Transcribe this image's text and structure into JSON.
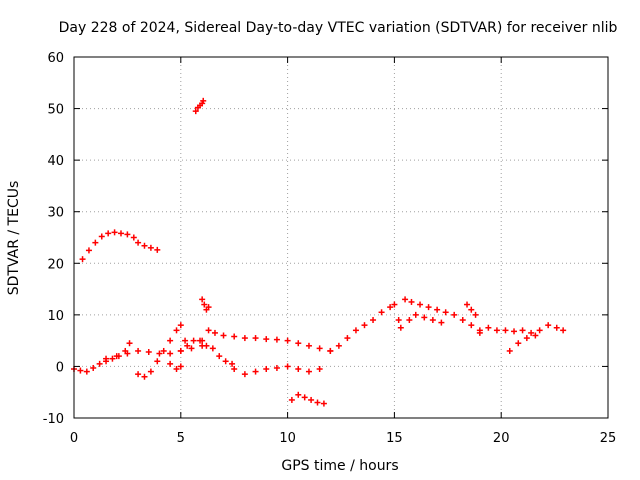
{
  "chart_data": {
    "type": "scatter",
    "title": "Day 228 of 2024, Sidereal Day-to-day VTEC variation (SDTVAR) for receiver nlib",
    "xlabel": "GPS time / hours",
    "ylabel": "SDTVAR / TECUs",
    "xlim": [
      0,
      25
    ],
    "ylim": [
      -10,
      60
    ],
    "xticks": [
      0,
      5,
      10,
      15,
      20,
      25
    ],
    "yticks": [
      -10,
      0,
      10,
      20,
      30,
      40,
      50,
      60
    ],
    "grid": true,
    "marker": "+",
    "series": [
      {
        "name": "SDTVAR",
        "color": "#ff0000",
        "segments": [
          {
            "x": [
              0.0,
              0.3,
              0.6,
              0.9,
              1.2,
              1.5,
              1.8,
              2.1,
              2.4,
              2.6
            ],
            "y": [
              -0.5,
              -0.8,
              -1.0,
              -0.3,
              0.5,
              1.0,
              1.5,
              2.0,
              3.0,
              4.5
            ]
          },
          {
            "x": [
              0.4,
              0.7,
              1.0,
              1.3,
              1.6,
              1.9,
              2.2,
              2.5,
              2.8,
              3.0,
              3.3,
              3.6,
              3.9
            ],
            "y": [
              20.8,
              22.5,
              24.0,
              25.2,
              25.8,
              26.0,
              25.8,
              25.6,
              25.0,
              24.0,
              23.4,
              23.0,
              22.6
            ]
          },
          {
            "x": [
              1.5,
              2.0,
              2.5,
              3.0,
              3.5,
              4.0,
              4.5,
              5.0,
              5.5,
              6.0
            ],
            "y": [
              1.5,
              2.0,
              2.5,
              3.0,
              2.8,
              2.5,
              2.5,
              3.0,
              3.5,
              4.0
            ]
          },
          {
            "x": [
              3.0,
              3.3,
              3.6,
              3.9,
              4.2,
              4.5,
              4.8,
              5.0
            ],
            "y": [
              -1.5,
              -2.0,
              -1.0,
              1.0,
              3.0,
              5.0,
              7.0,
              8.0
            ]
          },
          {
            "x": [
              4.5,
              4.8,
              5.0,
              5.2
            ],
            "y": [
              0.5,
              -0.5,
              0.0,
              5.0
            ]
          },
          {
            "x": [
              5.7,
              5.8,
              5.9,
              6.0,
              6.05
            ],
            "y": [
              49.5,
              50.2,
              50.6,
              51.0,
              51.5
            ]
          },
          {
            "x": [
              6.0,
              6.1,
              6.2,
              6.3
            ],
            "y": [
              13.0,
              12.0,
              11.0,
              11.5
            ]
          },
          {
            "x": [
              5.0,
              5.3,
              5.6,
              5.9,
              6.2,
              6.5,
              6.8,
              7.1,
              7.4
            ],
            "y": [
              3.0,
              4.0,
              5.0,
              5.0,
              4.0,
              3.5,
              2.0,
              1.0,
              0.5
            ]
          },
          {
            "x": [
              6.0,
              6.3,
              6.6,
              7.0,
              7.5,
              8.0,
              8.5,
              9.0,
              9.5,
              10.0,
              10.5,
              11.0,
              11.5,
              12.0
            ],
            "y": [
              5.0,
              7.0,
              6.5,
              6.0,
              5.8,
              5.5,
              5.5,
              5.3,
              5.2,
              5.0,
              4.5,
              4.0,
              3.5,
              3.0
            ]
          },
          {
            "x": [
              7.5,
              8.0,
              8.5,
              9.0,
              9.5,
              10.0,
              10.5,
              11.0,
              11.5
            ],
            "y": [
              -0.5,
              -1.5,
              -1.0,
              -0.5,
              -0.3,
              0.0,
              -0.5,
              -1.0,
              -0.5
            ]
          },
          {
            "x": [
              10.2,
              10.5,
              10.8,
              11.1,
              11.4,
              11.7
            ],
            "y": [
              -6.5,
              -5.5,
              -6.0,
              -6.5,
              -7.0,
              -7.2
            ]
          },
          {
            "x": [
              12.0,
              12.4,
              12.8,
              13.2,
              13.6,
              14.0,
              14.4,
              14.8,
              15.0
            ],
            "y": [
              3.0,
              4.0,
              5.5,
              7.0,
              8.0,
              9.0,
              10.5,
              11.5,
              12.0
            ]
          },
          {
            "x": [
              15.2,
              15.5,
              15.8,
              16.2,
              16.6,
              17.0,
              17.4,
              17.8,
              18.2,
              18.6,
              19.0
            ],
            "y": [
              9.0,
              13.0,
              12.5,
              12.0,
              11.5,
              11.0,
              10.5,
              10.0,
              9.0,
              8.0,
              7.0
            ]
          },
          {
            "x": [
              15.3,
              15.7,
              16.0,
              16.4,
              16.8,
              17.2
            ],
            "y": [
              7.5,
              9.0,
              10.0,
              9.5,
              9.0,
              8.5
            ]
          },
          {
            "x": [
              18.4,
              18.6,
              18.8
            ],
            "y": [
              12.0,
              11.0,
              10.0
            ]
          },
          {
            "x": [
              19.0,
              19.4,
              19.8,
              20.2,
              20.6,
              21.0,
              21.4,
              21.8,
              22.2,
              22.6,
              22.9
            ],
            "y": [
              6.5,
              7.5,
              7.0,
              7.0,
              6.8,
              7.0,
              6.5,
              7.0,
              8.0,
              7.5,
              7.0
            ]
          },
          {
            "x": [
              20.4,
              20.8,
              21.2,
              21.6
            ],
            "y": [
              3.0,
              4.5,
              5.5,
              6.0
            ]
          }
        ]
      }
    ]
  }
}
